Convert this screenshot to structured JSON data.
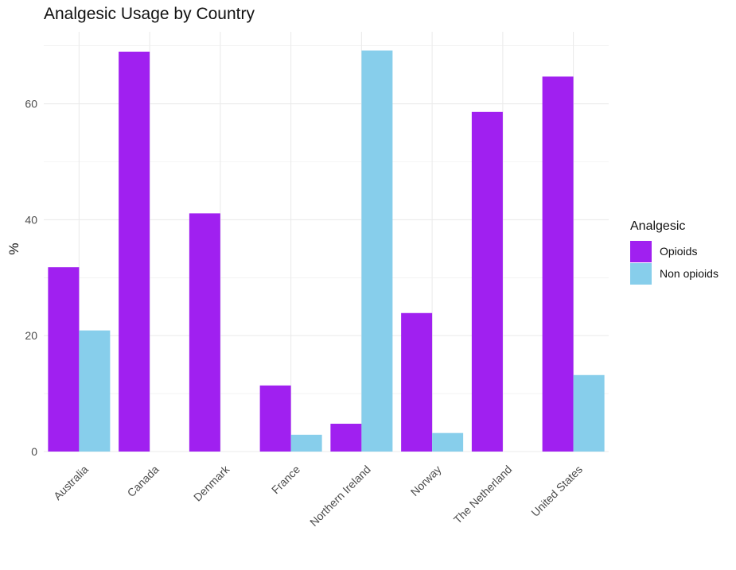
{
  "chart_data": {
    "type": "bar",
    "title": "Analgesic Usage by Country",
    "xlabel": "",
    "ylabel": "%",
    "categories": [
      "Australia",
      "Canada",
      "Denmark",
      "France",
      "Northern Ireland",
      "Norway",
      "The Netherland",
      "United States"
    ],
    "series": [
      {
        "name": "Opioids",
        "color": "#A020F0",
        "values": [
          31.8,
          69.0,
          41.1,
          11.4,
          4.8,
          23.9,
          58.6,
          64.7
        ]
      },
      {
        "name": "Non opioids",
        "color": "#87CEEB",
        "values": [
          20.9,
          null,
          null,
          2.9,
          69.2,
          3.2,
          null,
          13.2
        ]
      }
    ],
    "ylim": [
      0,
      70
    ],
    "yticks": [
      0,
      20,
      40,
      60
    ],
    "legend": {
      "title": "Analgesic",
      "position": "right"
    },
    "grid": true
  }
}
